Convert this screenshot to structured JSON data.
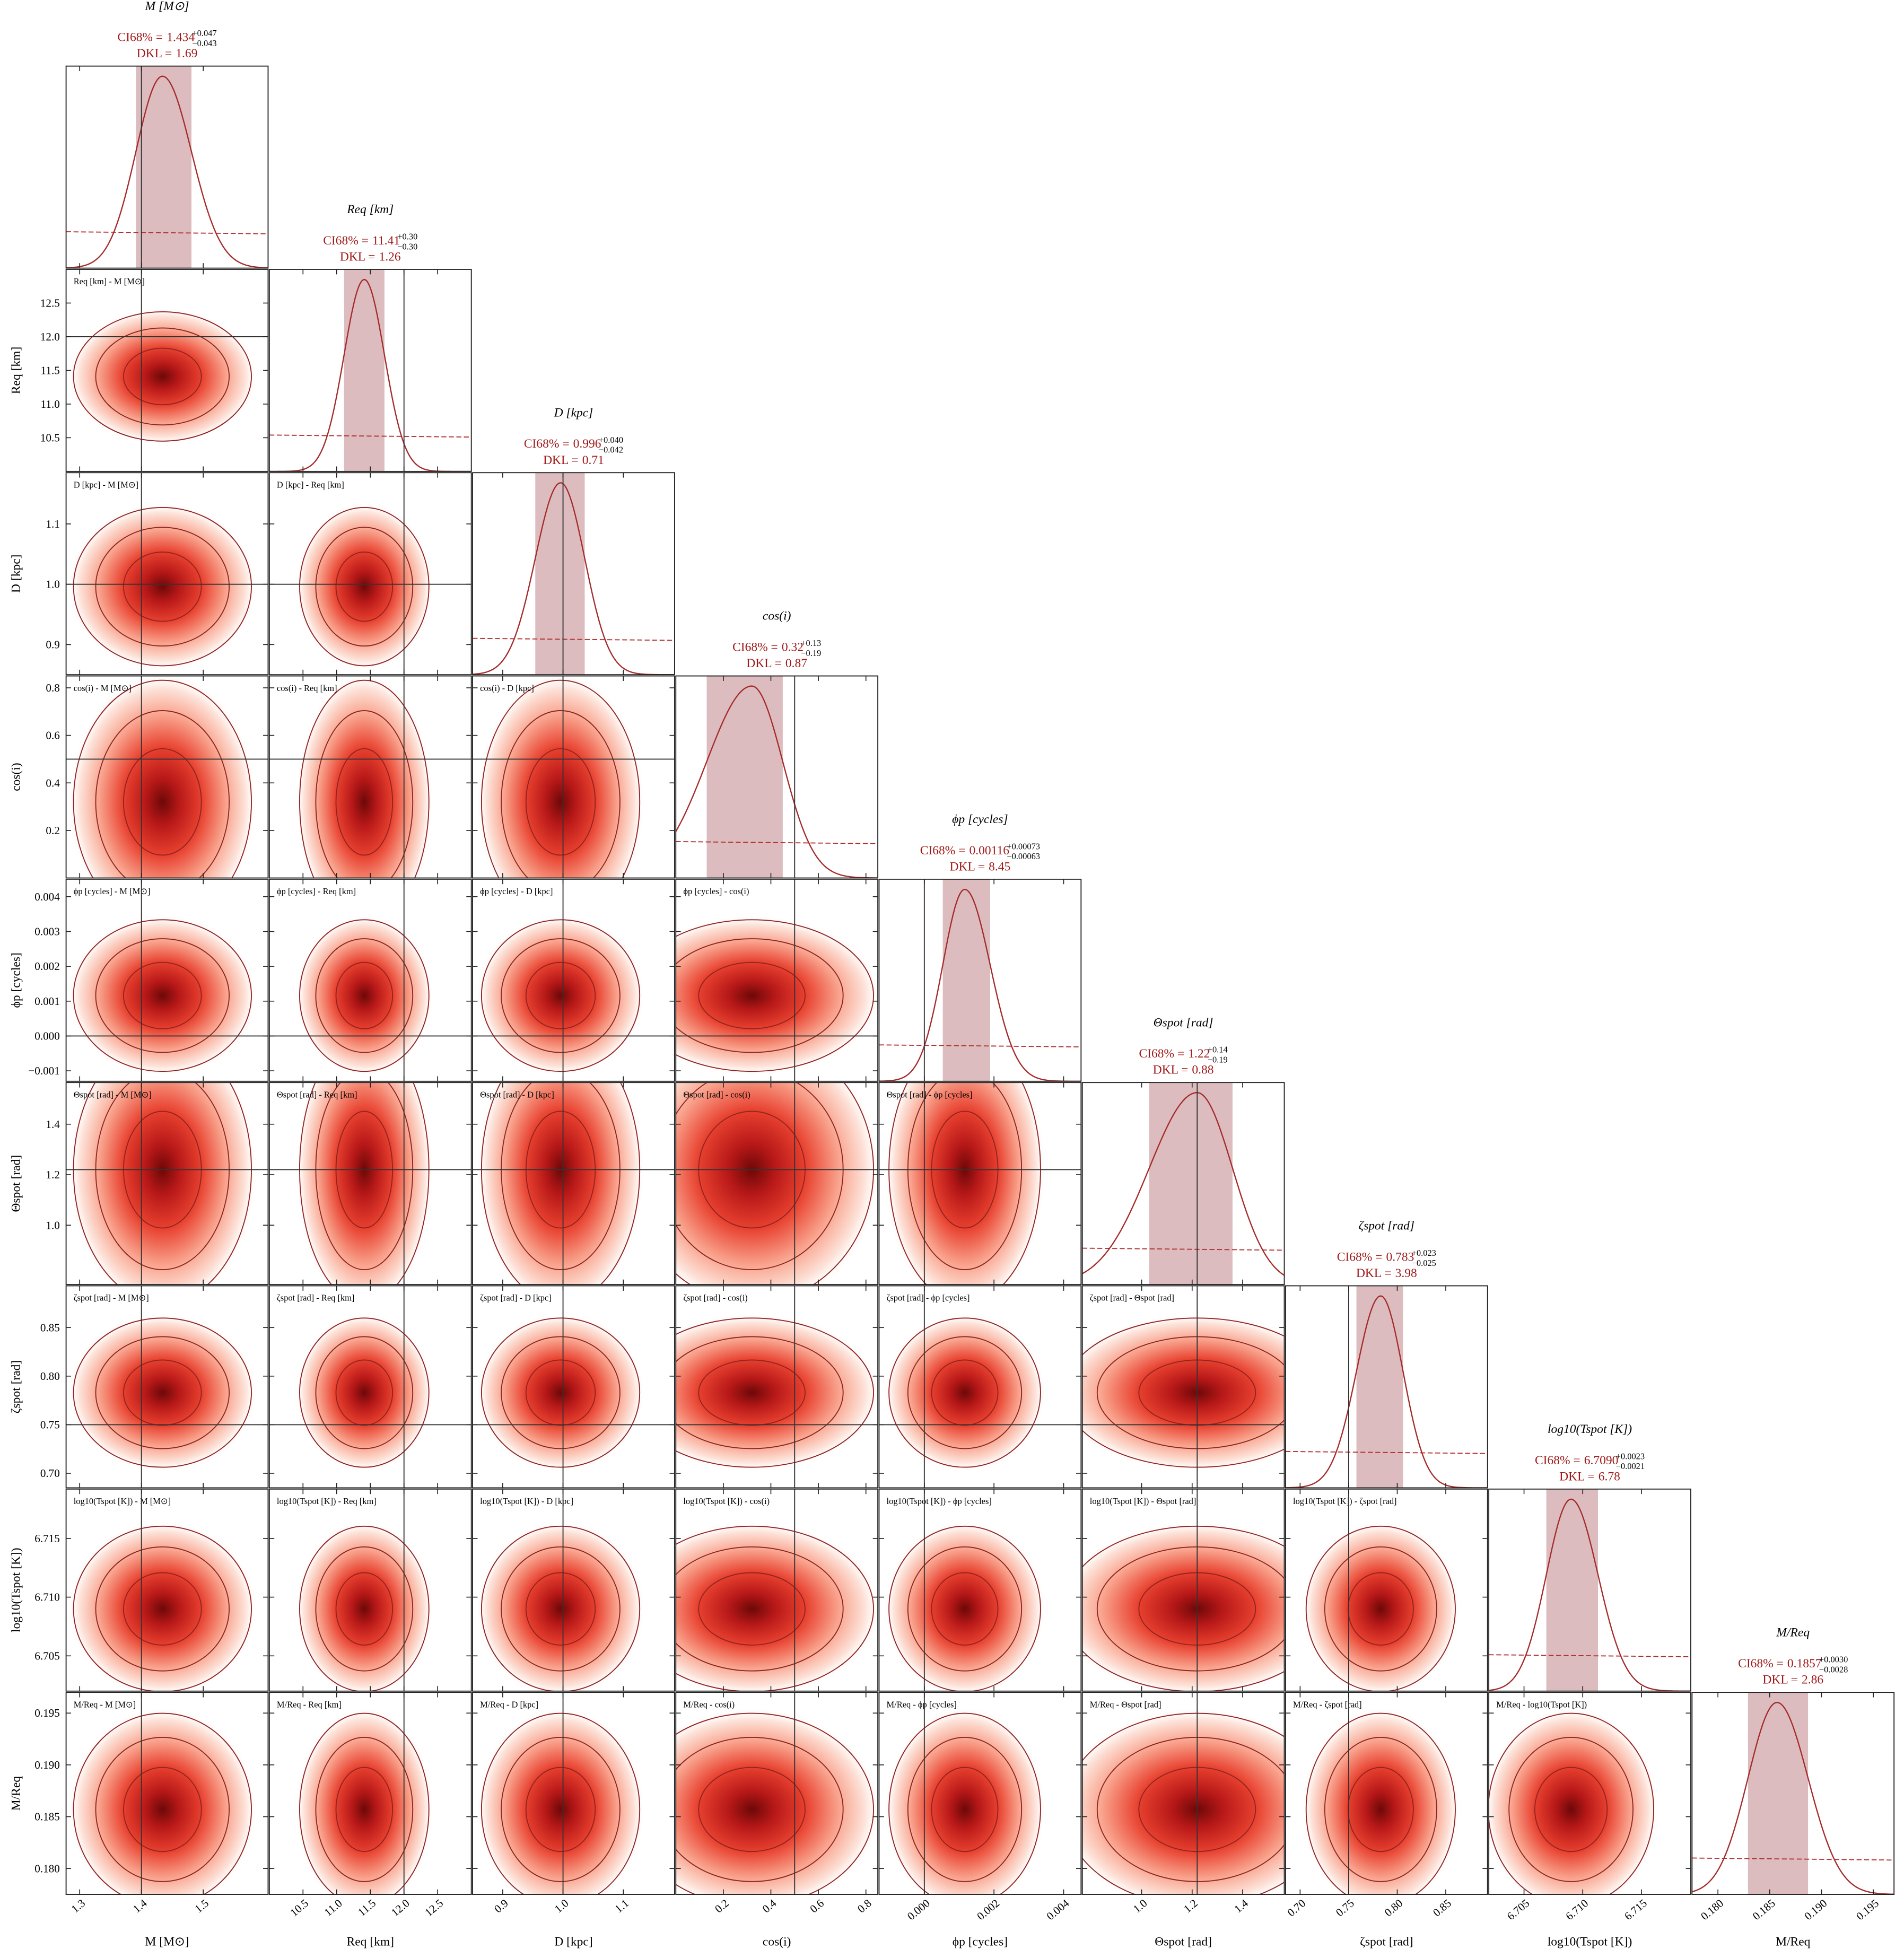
{
  "chart_data": {
    "type": "corner",
    "ci_prefix": "CI68% =",
    "dkl_prefix": "DKL =",
    "params": [
      {
        "name": "M [M⊙]",
        "median": 1.434,
        "plus": {
          "value": 0.047,
          "label": "+0.047"
        },
        "minus": {
          "value": -0.043,
          "label": "−0.043"
        },
        "dkl": 1.69,
        "lim": [
          1.278,
          1.605
        ],
        "ticks": [
          1.3,
          1.4,
          1.5
        ],
        "truth": 1.4
      },
      {
        "name": "Req [km]",
        "median": 11.41,
        "plus": {
          "value": 0.3,
          "label": "+0.30"
        },
        "minus": {
          "value": -0.3,
          "label": "−0.30"
        },
        "dkl": 1.26,
        "lim": [
          10,
          13
        ],
        "ticks": [
          10.5,
          {
            "value": 11,
            "label": "11.0"
          },
          11.5,
          {
            "value": 12,
            "label": "12.0"
          },
          12.5
        ],
        "truth": 12
      },
      {
        "name": "D [kpc]",
        "median": 0.996,
        "plus": {
          "value": 0.04,
          "label": "+0.040"
        },
        "minus": {
          "value": -0.042,
          "label": "−0.042"
        },
        "dkl": 0.71,
        "lim": [
          0.85,
          1.185
        ],
        "ticks": [
          0.9,
          {
            "value": 1,
            "label": "1.0"
          },
          1.1
        ],
        "truth": 1
      },
      {
        "name": "cos(i)",
        "median": 0.32,
        "plus": {
          "value": 0.13,
          "label": "+0.13"
        },
        "minus": {
          "value": -0.19,
          "label": "−0.19"
        },
        "dkl": 0.87,
        "lim": [
          0,
          0.85
        ],
        "ticks": [
          0.2,
          0.4,
          0.6,
          0.8
        ],
        "truth": 0.5
      },
      {
        "name": "ϕp [cycles]",
        "median": 0.00116,
        "plus": {
          "value": 0.00073,
          "label": "+0.00073"
        },
        "minus": {
          "value": -0.00063,
          "label": "−0.00063"
        },
        "dkl": 8.45,
        "lim": [
          -0.0013,
          0.0045
        ],
        "ticks": [
          {
            "value": -0.001,
            "label": "−0.001"
          },
          {
            "value": 0,
            "label": "0.000"
          },
          0.001,
          0.002,
          0.003,
          0.004
        ],
        "xticks": [
          {
            "value": 0,
            "label": "0.000"
          },
          0.002,
          0.004
        ],
        "truth": 0
      },
      {
        "name": "Θspot [rad]",
        "median": 1.22,
        "plus": {
          "value": 0.14,
          "label": "+0.14"
        },
        "minus": {
          "value": -0.19,
          "label": "−0.19"
        },
        "dkl": 0.88,
        "lim": [
          0.765,
          1.565
        ],
        "ticks": [
          {
            "value": 1,
            "label": "1.0"
          },
          1.2,
          1.4
        ],
        "truth": 1.22
      },
      {
        "name": "ζspot [rad]",
        "median": 0.783,
        "plus": {
          "value": 0.023,
          "label": "+0.023"
        },
        "minus": {
          "value": -0.025,
          "label": "−0.025"
        },
        "dkl": 3.98,
        "lim": [
          0.685,
          0.893
        ],
        "ticks": [
          {
            "value": 0.7,
            "label": "0.70"
          },
          0.75,
          {
            "value": 0.8,
            "label": "0.80"
          },
          0.85
        ],
        "truth": 0.75
      },
      {
        "name": "log10(Tspot [K])",
        "median": {
          "value": 6.709,
          "label": "6.7090"
        },
        "plus": {
          "value": 0.0023,
          "label": "+0.0023"
        },
        "minus": {
          "value": -0.0021,
          "label": "−0.0021"
        },
        "dkl": 6.78,
        "lim": [
          6.702,
          6.7192
        ],
        "ticks": [
          6.705,
          {
            "value": 6.71,
            "label": "6.710"
          },
          6.715
        ],
        "truth": null
      },
      {
        "name": "M/Req",
        "median": 0.1857,
        "plus": {
          "value": 0.003,
          "label": "+0.0030"
        },
        "minus": {
          "value": -0.0028,
          "label": "−0.0028"
        },
        "dkl": 2.86,
        "lim": [
          0.1775,
          0.197
        ],
        "ticks": [
          {
            "value": 0.18,
            "label": "0.180"
          },
          0.185,
          {
            "value": 0.19,
            "label": "0.190"
          },
          0.195
        ],
        "truth": null
      }
    ],
    "pair_labels": [
      [
        "Req [km] - M [M⊙]"
      ],
      [
        "D [kpc] - M [M⊙]",
        "D [kpc] - Req [km]"
      ],
      [
        "cos(i) - M [M⊙]",
        "cos(i) - Req [km]",
        "cos(i) - D [kpc]"
      ],
      [
        "ϕp [cycles] - M [M⊙]",
        "ϕp [cycles] - Req [km]",
        "ϕp [cycles] - D [kpc]",
        "ϕp [cycles] - cos(i)"
      ],
      [
        "Θspot [rad] - M [M⊙]",
        "Θspot [rad] - Req [km]",
        "Θspot [rad] - D [kpc]",
        "Θspot [rad] - cos(i)",
        "Θspot [rad] - ϕp [cycles]"
      ],
      [
        "ζspot [rad] - M [M⊙]",
        "ζspot [rad] - Req [km]",
        "ζspot [rad] - D [kpc]",
        "ζspot [rad] - cos(i)",
        "ζspot [rad] - ϕp [cycles]",
        "ζspot [rad] - Θspot [rad]"
      ],
      [
        "log10(Tspot [K]) - M [M⊙]",
        "log10(Tspot [K]) - Req [km]",
        "log10(Tspot [K]) - D [kpc]",
        "log10(Tspot [K]) - cos(i)",
        "log10(Tspot [K]) - ϕp [cycles]",
        "log10(Tspot [K]) - Θspot [rad]",
        "log10(Tspot [K]) - ζspot [rad]"
      ],
      [
        "M/Req - M [M⊙]",
        "M/Req - Req [km]",
        "M/Req - D [kpc]",
        "M/Req - cos(i)",
        "M/Req - ϕp [cycles]",
        "M/Req - Θspot [rad]",
        "M/Req - ζspot [rad]",
        "M/Req - log10(Tspot [K])"
      ]
    ]
  }
}
